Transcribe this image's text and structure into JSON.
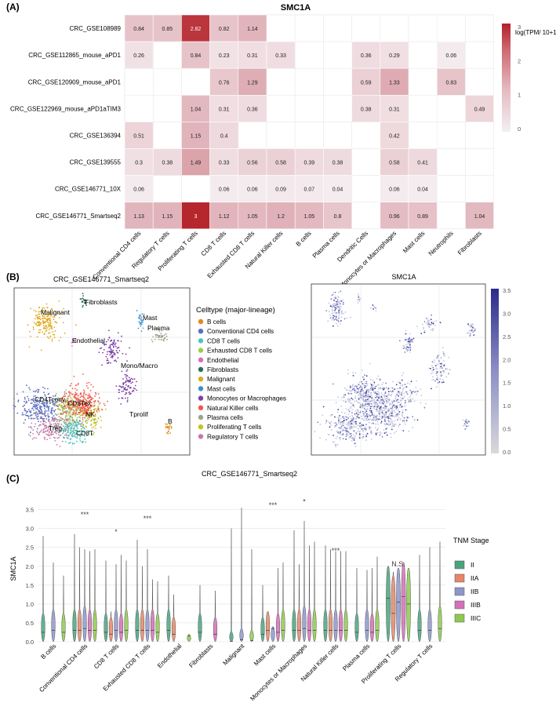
{
  "panels": {
    "a_label": "(A)",
    "b_label": "(B)",
    "c_label": "(C)"
  },
  "chart_data": [
    {
      "id": "heatmap",
      "type": "heatmap",
      "title": "SMC1A",
      "legend_title": "log(TPM/ 10+1)",
      "legend_ticks": [
        "3",
        "2",
        "1",
        "0"
      ],
      "value_range": [
        0,
        3
      ],
      "low_color": "#f6eef2",
      "high_color": "#b5262d",
      "rows": [
        "CRC_GSE108989",
        "CRC_GSE112865_mouse_aPD1",
        "CRC_GSE120909_mouse_aPD1",
        "CRC_GSE122969_mouse_aPD1aTIM3",
        "CRC_GSE136394",
        "CRC_GSE139555",
        "CRC_GSE146771_10X",
        "CRC_GSE146771_Smartseq2"
      ],
      "columns": [
        "Conventional CD4 cells",
        "Regulatory T cells",
        "Proliferating T cells",
        "CD8 T cells",
        "Exhausted CD8 T cells",
        "Natural Killer cells",
        "B cells",
        "Plasma cells",
        "Dendritic Cells",
        "Monocytes or Macrophages",
        "Mast cells",
        "Neutrophils",
        "Fibroblasts"
      ],
      "values": [
        [
          "0.84",
          "0.85",
          "2.82",
          "0.82",
          "1.14",
          null,
          null,
          null,
          null,
          null,
          null,
          null,
          null
        ],
        [
          "0.26",
          null,
          "0.84",
          "0.23",
          "0.31",
          "0.33",
          null,
          null,
          "0.36",
          "0.29",
          null,
          "0.06",
          null
        ],
        [
          null,
          null,
          null,
          "0.76",
          "1.29",
          null,
          null,
          null,
          "0.59",
          "1.33",
          null,
          "0.83",
          null
        ],
        [
          null,
          null,
          "1.04",
          "0.31",
          "0.36",
          null,
          null,
          null,
          "0.38",
          "0.31",
          null,
          null,
          "0.49"
        ],
        [
          "0.51",
          null,
          "1.15",
          "0.4",
          null,
          null,
          null,
          null,
          null,
          "0.42",
          null,
          null,
          null
        ],
        [
          "0.3",
          "0.38",
          "1.49",
          "0.33",
          "0.56",
          "0.58",
          "0.39",
          "0.38",
          null,
          "0.58",
          "0.41",
          null,
          null
        ],
        [
          "0.06",
          null,
          null,
          "0.06",
          "0.06",
          "0.09",
          "0.07",
          "0.04",
          null,
          "0.06",
          "0.04",
          null,
          null
        ],
        [
          "1.13",
          "1.15",
          "3",
          "1.12",
          "1.05",
          "1.2",
          "1.05",
          "0.8",
          null,
          "0.96",
          "0.89",
          null,
          "1.04"
        ]
      ]
    },
    {
      "id": "umap-celltype",
      "type": "scatter",
      "title": "CRC_GSE146771_Smartseq2",
      "legend_title": "Celltype (major-lineage)",
      "legend": [
        {
          "name": "B cells",
          "color": "#e08a1e"
        },
        {
          "name": "Conventional CD4 cells",
          "color": "#5b6fc0"
        },
        {
          "name": "CD8 T cells",
          "color": "#4fc3b9"
        },
        {
          "name": "Exhausted CD8 T cells",
          "color": "#a6c94a"
        },
        {
          "name": "Endothelial",
          "color": "#d86cc0"
        },
        {
          "name": "Fibroblasts",
          "color": "#2f6b5d"
        },
        {
          "name": "Malignant",
          "color": "#e2a91c"
        },
        {
          "name": "Mast cells",
          "color": "#3b8fd0"
        },
        {
          "name": "Monocytes or Macrophages",
          "color": "#7b3fa5"
        },
        {
          "name": "Natural Killer cells",
          "color": "#ef5a4b"
        },
        {
          "name": "Plasma cells",
          "color": "#9ea38c"
        },
        {
          "name": "Proliferating T cells",
          "color": "#c7c21e"
        },
        {
          "name": "Regulatory T cells",
          "color": "#c779a8"
        }
      ],
      "cluster_labels": [
        "Fibroblasts",
        "Malignant",
        "Endothelial",
        "Mast",
        "Plasma",
        "Mono/Macro",
        "CD4Tconv",
        "CD8Tex",
        "NK",
        "Tprolif",
        "Treg",
        "CD8T",
        "B"
      ]
    },
    {
      "id": "umap-expression",
      "type": "scatter",
      "title": "SMC1A",
      "colorbar_range": [
        0,
        3.5
      ],
      "colorbar_ticks": [
        "3.5",
        "3.0",
        "2.5",
        "2.0",
        "1.5",
        "1.0",
        "0.5",
        "0.0"
      ],
      "low_color": "#d9d9d9",
      "high_color": "#2b2a8a"
    },
    {
      "id": "violin",
      "type": "violin",
      "title": "CRC_GSE146771_Smartseq2",
      "ylabel": "SMC1A",
      "ylim": [
        0,
        3.7
      ],
      "yticks": [
        "0.0",
        "0.5",
        "1.0",
        "1.5",
        "2.0",
        "2.5",
        "3.0",
        "3.5"
      ],
      "legend_title": "TNM Stage",
      "series": [
        {
          "name": "II",
          "color": "#4aa37f"
        },
        {
          "name": "IIA",
          "color": "#e5876a"
        },
        {
          "name": "IIB",
          "color": "#8d96c9"
        },
        {
          "name": "IIIB",
          "color": "#d56fb8"
        },
        {
          "name": "IIIC",
          "color": "#8ec94f"
        }
      ],
      "categories": [
        "B cells",
        "Conventional CD4 cells",
        "CD8 T cells",
        "Exhausted CD8 T cells",
        "Endothelial",
        "Fibroblasts",
        "Malignant",
        "Mast cells",
        "Monocytes or Macrophages",
        "Natural Killer cells",
        "Plasma cells",
        "Proliferating T cells",
        "Regulatory T cells"
      ],
      "annotations": [
        {
          "category": "Conventional CD4 cells",
          "text": "***",
          "y": 3.3
        },
        {
          "category": "CD8 T cells",
          "text": "*",
          "y": 2.85
        },
        {
          "category": "Exhausted CD8 T cells",
          "text": "***",
          "y": 3.2
        },
        {
          "category": "Mast cells",
          "text": "***",
          "y": 3.55
        },
        {
          "category": "Monocytes or Macrophages",
          "text": "*",
          "y": 3.65
        },
        {
          "category": "Natural Killer cells",
          "text": "***",
          "y": 2.35
        },
        {
          "category": "Proliferating T cells",
          "text": "N.S.",
          "y": 2.0
        }
      ],
      "violin_max": [
        [
          2.8,
          0,
          2.1,
          0,
          1.75
        ],
        [
          2.85,
          2.5,
          2.45,
          2.4,
          2.45
        ],
        [
          2.15,
          0.8,
          2.05,
          2.3,
          2.15
        ],
        [
          2.7,
          2.0,
          2.45,
          1.65,
          1.6
        ],
        [
          1.75,
          1.25,
          0,
          0,
          0.2
        ],
        [
          1.5,
          0,
          0,
          1.35,
          0
        ],
        [
          3.0,
          0,
          3.55,
          0,
          2.45
        ],
        [
          1.5,
          0.8,
          0.4,
          1.95,
          2.1
        ],
        [
          2.95,
          2.05,
          3.2,
          2.55,
          2.65
        ],
        [
          2.55,
          2.45,
          2.4,
          2.4,
          2.4
        ],
        [
          1.95,
          0,
          1.9,
          1.95,
          2.25
        ],
        [
          2.0,
          1.85,
          1.95,
          2.1,
          1.95
        ],
        [
          2.3,
          0,
          2.5,
          0,
          2.65
        ]
      ],
      "violin_median": [
        [
          0.25,
          0,
          0.3,
          0,
          0.25
        ],
        [
          0.3,
          0.3,
          0.35,
          0.3,
          0.3
        ],
        [
          0.25,
          0.2,
          0.3,
          0.25,
          0.3
        ],
        [
          0.3,
          0.3,
          0.3,
          0.3,
          0.25
        ],
        [
          0.3,
          0.2,
          0,
          0,
          0.15
        ],
        [
          0.25,
          0,
          0,
          0.2,
          0
        ],
        [
          0.01,
          0,
          0.05,
          0,
          0.03
        ],
        [
          0.2,
          0.3,
          0.35,
          0.25,
          0.3
        ],
        [
          0.3,
          0.3,
          0.35,
          0.3,
          0.3
        ],
        [
          0.3,
          0.3,
          0.3,
          0.3,
          0.3
        ],
        [
          0.25,
          0,
          0.3,
          0.25,
          0.3
        ],
        [
          1.15,
          0.75,
          1.05,
          1.2,
          1.0
        ],
        [
          0.3,
          0,
          0.3,
          0,
          0.35
        ]
      ]
    }
  ]
}
